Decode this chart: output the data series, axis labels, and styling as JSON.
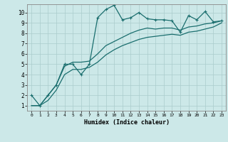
{
  "xlabel": "Humidex (Indice chaleur)",
  "background_color": "#cce8e8",
  "grid_color": "#aacccc",
  "line_color": "#1a6e6e",
  "xlim": [
    -0.5,
    23.5
  ],
  "ylim": [
    0.5,
    10.8
  ],
  "xticks": [
    0,
    1,
    2,
    3,
    4,
    5,
    6,
    7,
    8,
    9,
    10,
    11,
    12,
    13,
    14,
    15,
    16,
    17,
    18,
    19,
    20,
    21,
    22,
    23
  ],
  "yticks": [
    1,
    2,
    3,
    4,
    5,
    6,
    7,
    8,
    9,
    10
  ],
  "series": [
    {
      "x": [
        0,
        1,
        2,
        3,
        4,
        5,
        6,
        7,
        8,
        9,
        10,
        11,
        12,
        13,
        14,
        15,
        16,
        17,
        18,
        19,
        20,
        21,
        22,
        23
      ],
      "y": [
        2,
        1,
        2,
        3,
        5,
        5,
        4,
        5,
        9.5,
        10.3,
        10.7,
        9.3,
        9.5,
        10.0,
        9.4,
        9.3,
        9.3,
        9.2,
        8.1,
        9.7,
        9.3,
        10.1,
        9.1,
        9.2
      ],
      "has_marker": true,
      "markersize": 2.5,
      "linewidth": 0.9
    },
    {
      "x": [
        0,
        1,
        2,
        3,
        4,
        5,
        6,
        7,
        8,
        9,
        10,
        11,
        12,
        13,
        14,
        15,
        16,
        17,
        18,
        19,
        20,
        21,
        22,
        23
      ],
      "y": [
        1,
        1,
        2,
        3,
        4.8,
        5.2,
        5.2,
        5.3,
        6.0,
        6.8,
        7.2,
        7.6,
        8.0,
        8.3,
        8.5,
        8.4,
        8.5,
        8.5,
        8.3,
        8.6,
        8.7,
        8.9,
        9.0,
        9.2
      ],
      "has_marker": false,
      "markersize": 0,
      "linewidth": 0.9
    },
    {
      "x": [
        0,
        1,
        2,
        3,
        4,
        5,
        6,
        7,
        8,
        9,
        10,
        11,
        12,
        13,
        14,
        15,
        16,
        17,
        18,
        19,
        20,
        21,
        22,
        23
      ],
      "y": [
        1,
        1,
        1.5,
        2.5,
        4.0,
        4.5,
        4.5,
        4.7,
        5.2,
        5.9,
        6.4,
        6.8,
        7.1,
        7.4,
        7.6,
        7.7,
        7.8,
        7.9,
        7.8,
        8.1,
        8.2,
        8.4,
        8.6,
        9.0
      ],
      "has_marker": false,
      "markersize": 0,
      "linewidth": 0.9
    }
  ]
}
